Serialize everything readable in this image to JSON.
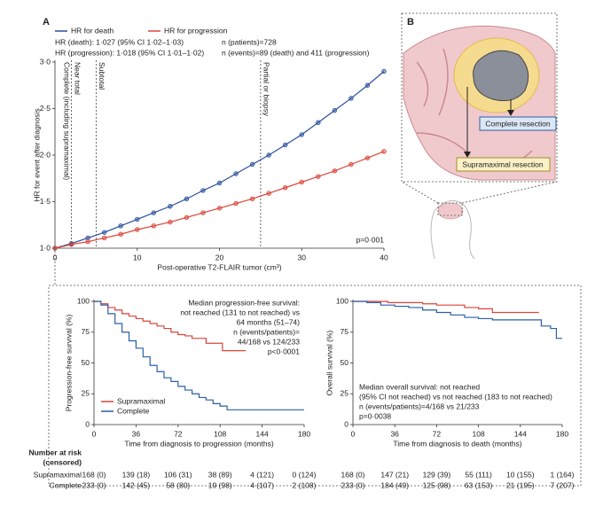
{
  "chart_data": [
    {
      "type": "line",
      "panel": "A",
      "x_label": "Post-operative T2-FLAIR tumor (cm³)",
      "y_label": "HR for event after diagnosis",
      "xlim": [
        0,
        40
      ],
      "ylim": [
        1,
        3
      ],
      "xticks": [
        0,
        10,
        20,
        30,
        40
      ],
      "yticks": [
        {
          "value": 1,
          "label": "1·0"
        },
        {
          "value": 1.5,
          "label": "1·5"
        },
        {
          "value": 2,
          "label": "2·0"
        },
        {
          "value": 2.5,
          "label": "2·5"
        },
        {
          "value": 3,
          "label": "3·0"
        }
      ],
      "x": [
        0,
        2,
        4,
        6,
        8,
        10,
        12,
        14,
        16,
        18,
        20,
        22,
        24,
        26,
        28,
        30,
        32,
        34,
        36,
        38,
        40
      ],
      "series": [
        {
          "name": "HR for death",
          "color": "#2b4f9e",
          "values": [
            1.0,
            1.05,
            1.11,
            1.17,
            1.24,
            1.31,
            1.38,
            1.45,
            1.53,
            1.62,
            1.7,
            1.8,
            1.9,
            2.0,
            2.11,
            2.22,
            2.35,
            2.48,
            2.61,
            2.75,
            2.9
          ]
        },
        {
          "name": "HR for progression",
          "color": "#d9453a",
          "values": [
            1.0,
            1.04,
            1.07,
            1.11,
            1.15,
            1.2,
            1.24,
            1.28,
            1.33,
            1.38,
            1.43,
            1.48,
            1.53,
            1.59,
            1.65,
            1.71,
            1.77,
            1.83,
            1.9,
            1.97,
            2.04
          ]
        }
      ],
      "vlines": [
        2,
        5,
        25
      ],
      "vline_labels": [
        "Complete (including supramaximal)",
        "Near total",
        "Subtotal",
        "Partial or biopsy"
      ],
      "stats": [
        "HR (death): 1·027 (95% CI 1·02–1·03)",
        "HR (progression): 1·018 (95% CI 1·01–1·02)",
        "n (patients)=728",
        "n (events)=89 (death) and 411 (progression)",
        "p=0·001"
      ],
      "legend": "top-left"
    },
    {
      "type": "step",
      "x_label": "Time from diagnosis to progression (months)",
      "y_label": "Progression-free survival (%)",
      "xlim": [
        0,
        180
      ],
      "ylim": [
        0,
        100
      ],
      "xticks": [
        0,
        36,
        72,
        108,
        144,
        180
      ],
      "yticks": [
        0,
        25,
        50,
        75,
        100
      ],
      "series": [
        {
          "name": "Supramaximal",
          "color": "#d9453a",
          "x": [
            0,
            6,
            12,
            18,
            24,
            30,
            36,
            42,
            48,
            54,
            60,
            66,
            72,
            78,
            84,
            96,
            110,
            130
          ],
          "values": [
            100,
            98,
            95,
            93,
            90,
            88,
            86,
            84,
            82,
            80,
            78,
            75,
            73,
            72,
            70,
            66,
            60,
            60
          ]
        },
        {
          "name": "Complete",
          "color": "#2b5fa8",
          "x": [
            0,
            6,
            12,
            18,
            24,
            30,
            36,
            42,
            48,
            54,
            60,
            66,
            72,
            78,
            84,
            90,
            96,
            102,
            108,
            114,
            180
          ],
          "values": [
            100,
            97,
            90,
            82,
            75,
            68,
            62,
            55,
            48,
            43,
            38,
            35,
            31,
            28,
            25,
            22,
            20,
            17,
            15,
            12,
            12
          ]
        }
      ],
      "stats": [
        "Median progression-free survival:",
        "not reached (131 to not reached) vs",
        "64 months (51–74)",
        "n (events/patients)=",
        "44/168 vs 124/233",
        "p<0·0001"
      ],
      "legend": "bottom-left",
      "at_risk": [
        [
          "168 (0)",
          "139 (18)",
          "106 (31)",
          "38 (89)",
          "4 (121)",
          "0 (124)"
        ],
        [
          "233 (0)",
          "142 (45)",
          "58 (80)",
          "19 (98)",
          "4 (107)",
          "2 (108)"
        ]
      ]
    },
    {
      "type": "step",
      "x_label": "Time from diagnosis to death (months)",
      "y_label": "Overall survival (%)",
      "xlim": [
        0,
        180
      ],
      "ylim": [
        0,
        100
      ],
      "xticks": [
        0,
        36,
        72,
        108,
        144,
        180
      ],
      "yticks": [
        0,
        25,
        50,
        75,
        100
      ],
      "series": [
        {
          "name": "Supramaximal",
          "color": "#d9453a",
          "x": [
            0,
            30,
            60,
            72,
            96,
            108,
            120,
            160
          ],
          "values": [
            100,
            99,
            98,
            97,
            95,
            94,
            91,
            91
          ]
        },
        {
          "name": "Complete",
          "color": "#2b5fa8",
          "x": [
            0,
            12,
            24,
            36,
            48,
            60,
            72,
            84,
            96,
            108,
            120,
            150,
            162,
            170,
            175,
            180
          ],
          "values": [
            100,
            99,
            97,
            96,
            95,
            93,
            91,
            89,
            87,
            86,
            85,
            85,
            80,
            78,
            70,
            70
          ]
        }
      ],
      "stats": [
        "Median overall survival: not reached",
        "(95% CI not reached) vs not reached (183 to not reached)",
        "n (events/patients)=4/168 vs 21/233",
        "p=0·0038"
      ],
      "at_risk": [
        [
          "168 (0)",
          "147 (21)",
          "129 (39)",
          "55 (111)",
          "10 (155)",
          "1 (164)"
        ],
        [
          "233 (0)",
          "184 (49)",
          "125 (98)",
          "63 (153)",
          "21 (195)",
          "7 (207)"
        ]
      ]
    }
  ],
  "risk_table": {
    "title": "Number at risk",
    "subtitle": "(censored)",
    "rows": [
      "Supramaximal",
      "Complete"
    ]
  },
  "diagram": {
    "panel": "B",
    "complete": "Complete resection",
    "supramaximal": "Supramaximal resection"
  }
}
